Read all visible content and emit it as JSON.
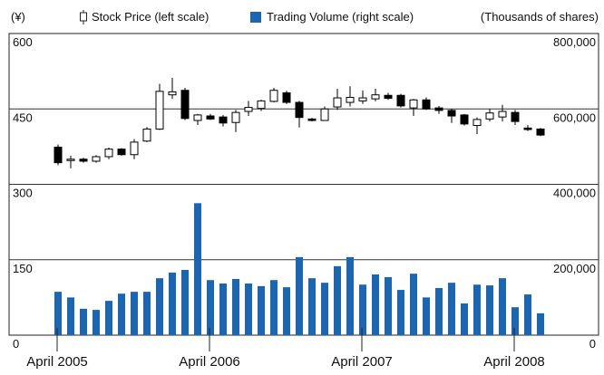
{
  "chart_data": {
    "type": "candlestick",
    "legend_texts": {
      "left_unit": "(¥)",
      "right_unit": "(Thousands of shares)"
    },
    "categories": [
      "April 2005",
      null,
      null,
      null,
      null,
      null,
      null,
      null,
      null,
      null,
      null,
      null,
      "April 2006",
      null,
      null,
      null,
      null,
      null,
      null,
      null,
      null,
      null,
      null,
      null,
      "April 2007",
      null,
      null,
      null,
      null,
      null,
      null,
      null,
      null,
      null,
      null,
      null,
      "April 2008",
      null,
      null
    ],
    "series": [
      {
        "name": "Stock Price (left scale)",
        "up_color": "#ffffff",
        "down_color": "#000000",
        "open": [
          374,
          348,
          350,
          346,
          355,
          370,
          359,
          386,
          410,
          478,
          487,
          427,
          436,
          434,
          423,
          445,
          451,
          465,
          482,
          463,
          430,
          427,
          454,
          463,
          466,
          470,
          477,
          477,
          452,
          468,
          452,
          447,
          438,
          417,
          430,
          434,
          443,
          412,
          410
        ],
        "high": [
          379,
          357,
          353,
          358,
          373,
          372,
          390,
          414,
          500,
          512,
          492,
          440,
          440,
          438,
          448,
          466,
          468,
          492,
          486,
          466,
          432,
          455,
          490,
          495,
          487,
          490,
          482,
          480,
          470,
          473,
          456,
          450,
          440,
          433,
          450,
          458,
          448,
          418,
          412
        ],
        "low": [
          338,
          332,
          343,
          343,
          350,
          357,
          350,
          384,
          408,
          470,
          428,
          418,
          428,
          415,
          404,
          436,
          446,
          463,
          460,
          413,
          425,
          427,
          448,
          455,
          460,
          465,
          468,
          453,
          436,
          448,
          440,
          422,
          417,
          400,
          425,
          425,
          418,
          406,
          396
        ],
        "close": [
          343,
          350,
          346,
          355,
          370,
          359,
          384,
          410,
          485,
          484,
          431,
          438,
          430,
          422,
          443,
          453,
          466,
          487,
          463,
          433,
          427,
          450,
          472,
          473,
          472,
          478,
          471,
          456,
          468,
          450,
          447,
          436,
          420,
          429,
          442,
          445,
          425,
          409,
          398
        ]
      },
      {
        "name": "Trading Volume (right scale)",
        "color": "#1a66b3",
        "axis": "y2",
        "values": [
          115000,
          100000,
          70000,
          67000,
          91000,
          110000,
          115000,
          115000,
          151000,
          166000,
          173000,
          350000,
          146000,
          137000,
          149000,
          137000,
          130000,
          146000,
          127000,
          207000,
          151000,
          139000,
          183000,
          207000,
          134000,
          161000,
          154000,
          120000,
          163000,
          100000,
          125000,
          139000,
          84000,
          134000,
          132000,
          151000,
          74000,
          108000,
          58000
        ]
      }
    ],
    "ylim": [
      0,
      600
    ],
    "yticks": [
      0,
      150,
      300,
      450,
      600
    ],
    "y2lim": [
      0,
      800000
    ],
    "y2ticks": [
      0,
      {
        "value": 200000,
        "label": "200,000"
      },
      {
        "value": 400000,
        "label": "400,000"
      },
      {
        "value": 600000,
        "label": "600,000"
      },
      {
        "value": 800000,
        "label": "800,000"
      }
    ],
    "grid": true
  }
}
